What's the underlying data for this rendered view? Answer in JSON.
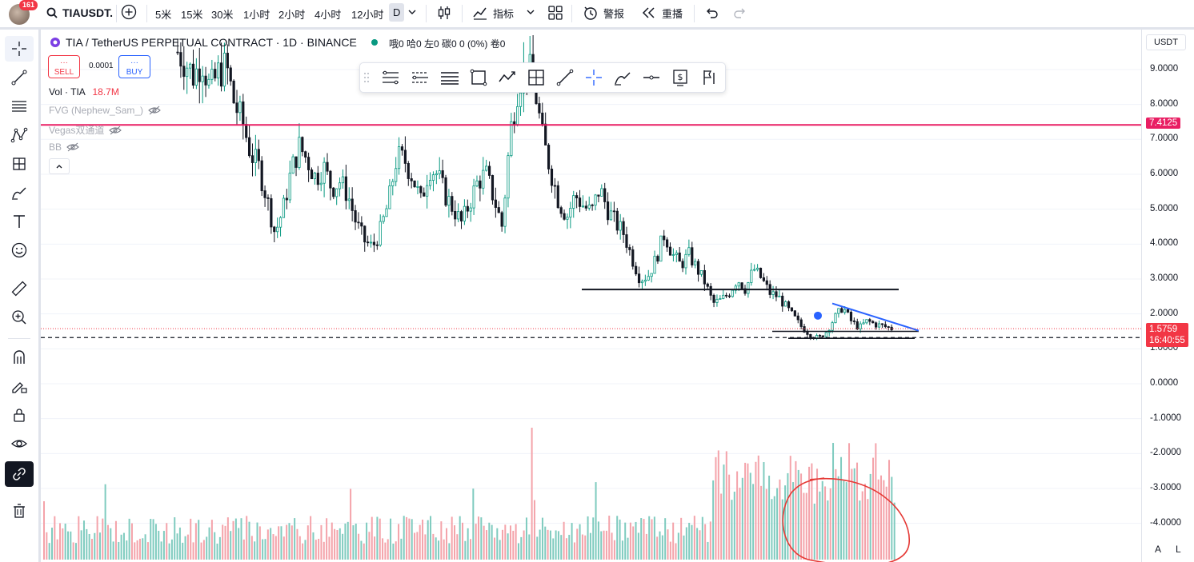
{
  "toolbar": {
    "symbol": "TIAUSDT.",
    "notification_count": "161",
    "intervals": [
      "5米",
      "15米",
      "30米",
      "1小时",
      "2小时",
      "4小时",
      "12小时",
      "D"
    ],
    "indicators_label": "指标",
    "alert_label": "警报",
    "replay_label": "重播"
  },
  "legend": {
    "title": "TIA / TetherUS PERPETUAL CONTRACT · 1D · BINANCE",
    "ohlc": "哦0 哈0 左0 碳0 0 (0%) 卷0",
    "sell_label": "SELL",
    "buy_label": "BUY",
    "spread": "0.0001",
    "dots": "···",
    "volume_label": "Vol · TIA",
    "volume_value": "18.7M",
    "indicators": [
      "FVG (Nephew_Sam_)",
      "Vegas双通道",
      "BB"
    ]
  },
  "price_axis": {
    "currency": "USDT",
    "ticks": [
      "9.0000",
      "8.0000",
      "7.0000",
      "6.0000",
      "5.0000",
      "4.0000",
      "3.0000",
      "2.0000",
      "1.0000",
      "0.0000",
      "-1.0000",
      "-2.0000",
      "-3.0000",
      "-4.0000"
    ],
    "horizontal_line_label": "7.4125",
    "current_price": "1.5759",
    "countdown": "16:40:55",
    "auto_label": "A",
    "log_label": "L"
  },
  "colors": {
    "up": "#089981",
    "down": "#f23645",
    "line": "#e91e63",
    "trend": "#2962ff",
    "accent": "#2962ff"
  },
  "chart_data": {
    "type": "candlestick",
    "timeframe": "1D",
    "price_path": [
      9.5,
      9.2,
      8.8,
      9.3,
      8.4,
      8.9,
      9.1,
      8.0,
      7.5,
      6.6,
      6.2,
      5.3,
      4.3,
      5.0,
      6.1,
      6.8,
      6.4,
      5.9,
      6.2,
      5.6,
      5.8,
      5.4,
      4.6,
      4.1,
      3.9,
      4.4,
      5.2,
      6.5,
      6.4,
      5.9,
      5.2,
      6.2,
      6.0,
      5.4,
      5.0,
      4.6,
      5.2,
      5.8,
      6.0,
      5.3,
      4.5,
      7.2,
      8.6,
      9.2,
      8.5,
      7.0,
      6.1,
      5.2,
      4.8,
      5.4,
      5.1,
      4.9,
      5.6,
      5.0,
      4.6,
      4.3,
      3.6,
      3.0,
      3.1,
      3.6,
      4.3,
      3.7,
      3.4,
      3.7,
      3.3,
      2.9,
      2.3,
      2.4,
      2.6,
      3.0,
      2.7,
      3.3,
      3.0,
      2.6,
      2.5,
      2.2,
      1.9,
      1.6,
      1.4,
      1.3,
      1.5,
      1.9,
      2.2,
      1.8,
      1.6,
      1.8,
      1.7,
      1.65,
      1.58
    ],
    "current_price": 1.5759,
    "horizontal_line": 7.4125,
    "support_lines": [
      2.7,
      1.5,
      1.3
    ],
    "dashed_line": 1.3,
    "ylim": [
      -4.5,
      9.5
    ],
    "volume_peaks": "spike near center, cluster of high volume at the right end (circled in red)"
  }
}
